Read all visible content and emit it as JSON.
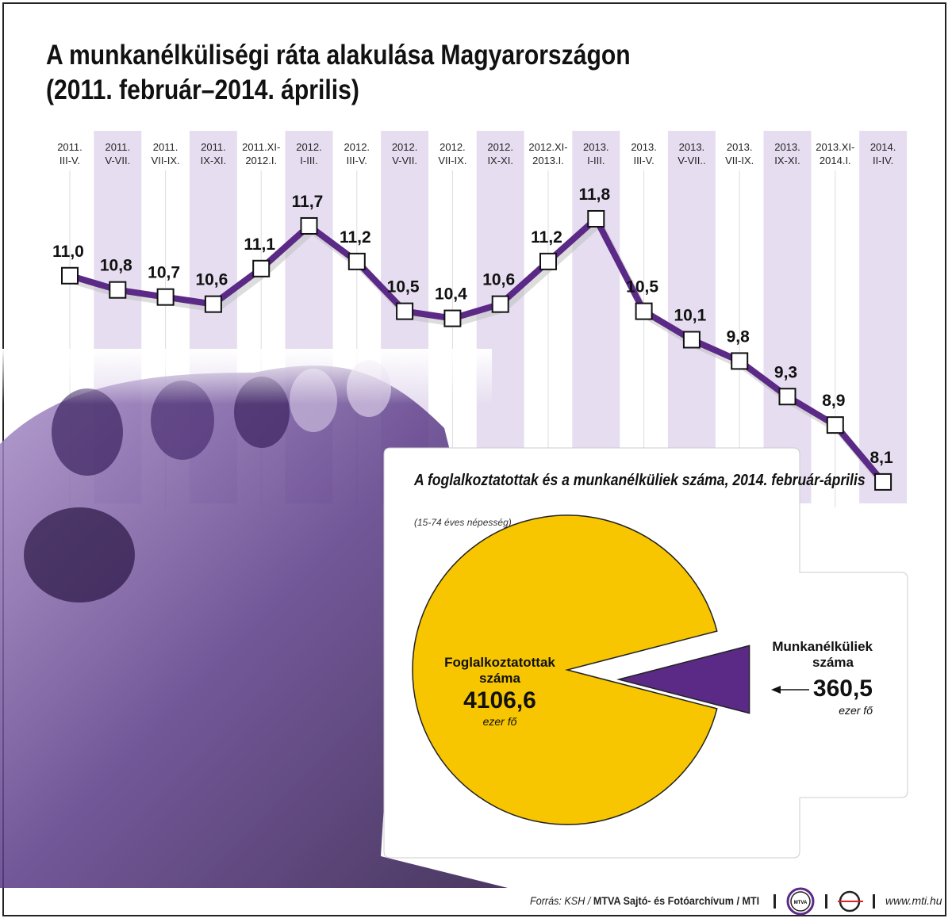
{
  "title_line1": "A munkanélküliségi ráta alakulása Magyarországon",
  "title_line2": "(2011. február–2014. április)",
  "chart_data": [
    {
      "type": "line",
      "title": "A munkanélküliségi ráta alakulása Magyarországon (2011. február–2014. április)",
      "categories": [
        [
          "2011.",
          "III-V."
        ],
        [
          "2011.",
          "V-VII."
        ],
        [
          "2011.",
          "VII-IX."
        ],
        [
          "2011.",
          "IX-XI."
        ],
        [
          "2011.XI-",
          "2012.I."
        ],
        [
          "2012.",
          "I-III."
        ],
        [
          "2012.",
          "III-V."
        ],
        [
          "2012.",
          "V-VII."
        ],
        [
          "2012.",
          "VII-IX."
        ],
        [
          "2012.",
          "IX-XI."
        ],
        [
          "2012.XI-",
          "2013.I."
        ],
        [
          "2013.",
          "I-III."
        ],
        [
          "2013.",
          "III-V."
        ],
        [
          "2013.",
          "V-VII.."
        ],
        [
          "2013.",
          "VII-IX."
        ],
        [
          "2013.",
          "IX-XI."
        ],
        [
          "2013.XI-",
          "2014.I."
        ],
        [
          "2014.",
          "II-IV."
        ]
      ],
      "values": [
        11.0,
        10.8,
        10.7,
        10.6,
        11.1,
        11.7,
        11.2,
        10.5,
        10.4,
        10.6,
        11.2,
        11.8,
        10.5,
        10.1,
        9.8,
        9.3,
        8.9,
        8.1
      ],
      "value_labels": [
        "11,0",
        "10,8",
        "10,7",
        "10,6",
        "11,1",
        "11,7",
        "11,2",
        "10,5",
        "10,4",
        "10,6",
        "11,2",
        "11,8",
        "10,5",
        "10,1",
        "9,8",
        "9,3",
        "8,9",
        "8,1"
      ],
      "ylabel": "%",
      "grid": false
    },
    {
      "type": "pie",
      "title": "A foglalkoztatottak és a munkanélküliek száma, 2014. február-április",
      "subtitle": "(15-74 éves népesség)",
      "slices": [
        {
          "name_line1": "Foglalkoztatottak",
          "name_line2": "száma",
          "value": 4106.6,
          "value_label": "4106,6",
          "unit": "ezer fő",
          "color": "#f7c600"
        },
        {
          "name_line1": "Munkanélküliek",
          "name_line2": "száma",
          "value": 360.5,
          "value_label": "360,5",
          "unit": "ezer fő",
          "color": "#5b2a86"
        }
      ]
    }
  ],
  "footer": {
    "source_prefix": "Forrás: KSH / ",
    "source_bold": "MTVA Sajtó- és Fotóarchívum / MTI",
    "logo1": "MTVA",
    "url": "www.mti.hu"
  },
  "colors": {
    "line": "#5b2a86",
    "stripe": "#e6def0",
    "pie_yellow": "#f7c600",
    "pie_purple": "#5b2a86"
  }
}
